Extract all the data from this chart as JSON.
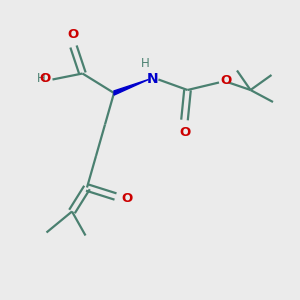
{
  "bg_color": "#ebebeb",
  "bond_color": "#4a8070",
  "o_color": "#cc0000",
  "n_color": "#0000cc",
  "line_width": 1.6,
  "fig_size": [
    3.0,
    3.0
  ],
  "dpi": 100,
  "xlim": [
    0,
    10
  ],
  "ylim": [
    0,
    10
  ]
}
